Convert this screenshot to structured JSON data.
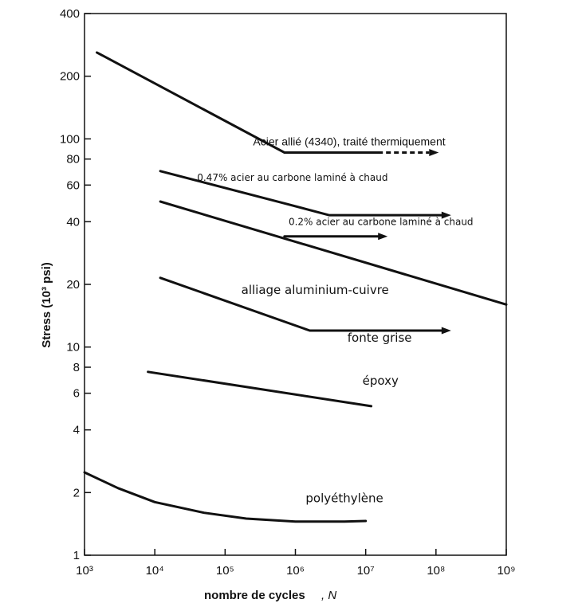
{
  "chart_data": {
    "type": "line",
    "xscale": "log",
    "yscale": "log",
    "xlim": [
      1000,
      1000000000
    ],
    "ylim": [
      1,
      400
    ],
    "xlabel": "nombre de cycles",
    "xlabel_symbol": ", N",
    "ylabel": "Stress (10³ psi)",
    "x_ticks": [
      {
        "value": 1000,
        "label": "10³"
      },
      {
        "value": 10000,
        "label": "10⁴"
      },
      {
        "value": 100000,
        "label": "10⁵"
      },
      {
        "value": 1000000,
        "label": "10⁶"
      },
      {
        "value": 10000000,
        "label": "10⁷"
      },
      {
        "value": 100000000,
        "label": "10⁸"
      },
      {
        "value": 1000000000,
        "label": "10⁹"
      }
    ],
    "y_ticks": [
      {
        "value": 1,
        "label": "1"
      },
      {
        "value": 2,
        "label": "2"
      },
      {
        "value": 4,
        "label": "4"
      },
      {
        "value": 6,
        "label": "6"
      },
      {
        "value": 8,
        "label": "8"
      },
      {
        "value": 10,
        "label": "10"
      },
      {
        "value": 20,
        "label": "20"
      },
      {
        "value": 40,
        "label": "40"
      },
      {
        "value": 60,
        "label": "60"
      },
      {
        "value": 80,
        "label": "80"
      },
      {
        "value": 100,
        "label": "100"
      },
      {
        "value": 200,
        "label": "200"
      },
      {
        "value": 400,
        "label": "400"
      }
    ],
    "grid": false,
    "legend": "none",
    "series": [
      {
        "id": "acier-4340",
        "label": "Acier allié (4340), traité thermiquement",
        "points": [
          [
            1500,
            260
          ],
          [
            700000,
            86
          ],
          [
            15000000,
            86
          ]
        ],
        "dashed_tail": [
          [
            15000000,
            86
          ],
          [
            80000000,
            86
          ]
        ],
        "arrow": true,
        "label_at": [
          250000,
          93
        ],
        "label_size": 14,
        "label_font": "lib"
      },
      {
        "id": "acier-047",
        "label": "0.47% acier au carbone laminé à chaud",
        "points": [
          [
            12000,
            70
          ],
          [
            700000,
            49
          ],
          [
            3000000,
            43
          ],
          [
            120000000,
            43
          ]
        ],
        "arrow": true,
        "label_at": [
          40000,
          63
        ],
        "label_size": 12,
        "label_font": "dejavu"
      },
      {
        "id": "acier-02",
        "label": "0.2% acier au carbone laminé à chaud",
        "points": [
          [
            700000,
            34
          ],
          [
            15000000,
            34
          ]
        ],
        "arrow": true,
        "label_at": [
          800000,
          38.5
        ],
        "label_size": 12,
        "label_font": "dejavu"
      },
      {
        "id": "alliage-al-cu",
        "label": "alliage aluminium-cuivre",
        "points": [
          [
            12000,
            50
          ],
          [
            1000000000,
            16
          ]
        ],
        "arrow": false,
        "label_at": [
          170000,
          18
        ],
        "label_size": 15,
        "label_font": "dejavu"
      },
      {
        "id": "fonte-grise",
        "label": "fonte grise",
        "points": [
          [
            12000,
            21.5
          ],
          [
            1600000,
            12
          ],
          [
            120000000,
            12
          ]
        ],
        "arrow": true,
        "label_at": [
          5500000,
          10.6
        ],
        "label_size": 15,
        "label_font": "dejavu"
      },
      {
        "id": "epoxy",
        "label": "époxy",
        "points": [
          [
            8000,
            7.6
          ],
          [
            12000000,
            5.2
          ]
        ],
        "arrow": false,
        "label_at": [
          9000000,
          6.6
        ],
        "label_size": 15,
        "label_font": "dejavu"
      },
      {
        "id": "polyethylene",
        "label": "polyéthylène",
        "points": [
          [
            1000,
            2.5
          ],
          [
            3000,
            2.1
          ],
          [
            10000,
            1.8
          ],
          [
            50000,
            1.6
          ],
          [
            200000,
            1.5
          ],
          [
            1000000,
            1.45
          ],
          [
            5000000,
            1.45
          ],
          [
            10000000,
            1.46
          ]
        ],
        "arrow": false,
        "label_at": [
          1400000,
          1.8
        ],
        "label_size": 15,
        "label_font": "dejavu"
      }
    ]
  }
}
